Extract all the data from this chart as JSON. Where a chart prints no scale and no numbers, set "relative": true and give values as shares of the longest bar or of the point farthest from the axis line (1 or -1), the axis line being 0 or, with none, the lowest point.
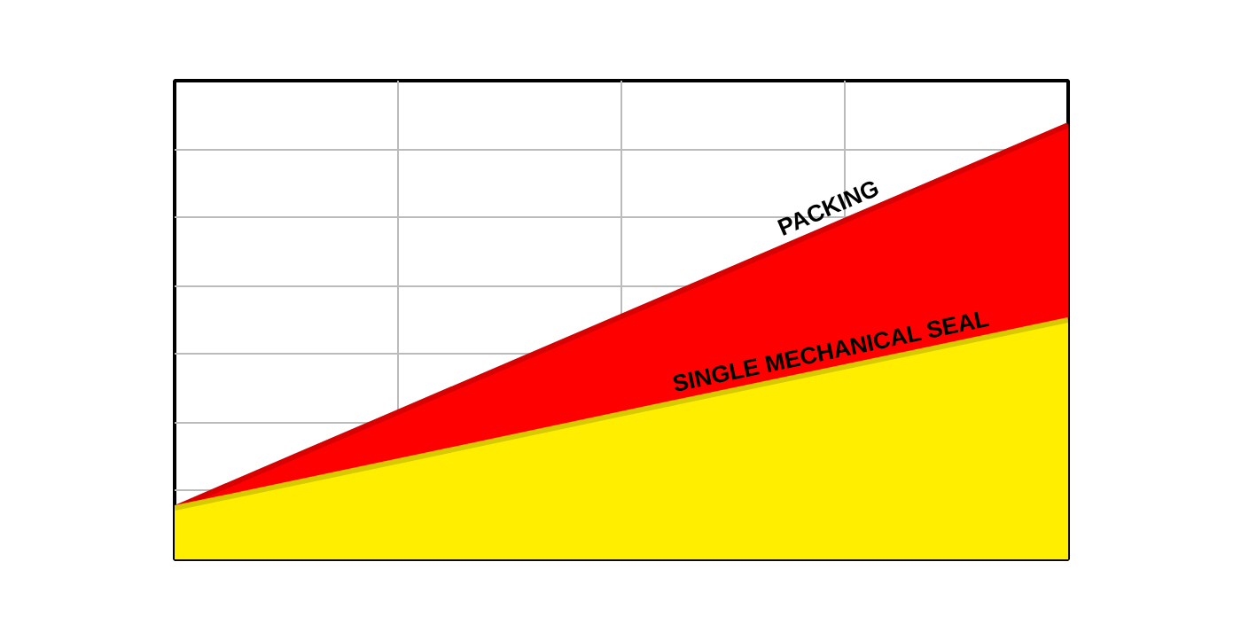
{
  "chart_data": {
    "type": "area",
    "relative": true,
    "grid": true,
    "categories": [
      null,
      null,
      null,
      null,
      null
    ],
    "series": [
      {
        "name": "PACKING",
        "color": "#ff0000",
        "values": [
          0.118,
          0.339,
          0.559,
          0.78,
          1.0
        ]
      },
      {
        "name": "SINGLE MECHANICAL SEAL",
        "color": "#ffee00",
        "values": [
          0.118,
          0.226,
          0.335,
          0.443,
          0.551
        ]
      }
    ]
  }
}
